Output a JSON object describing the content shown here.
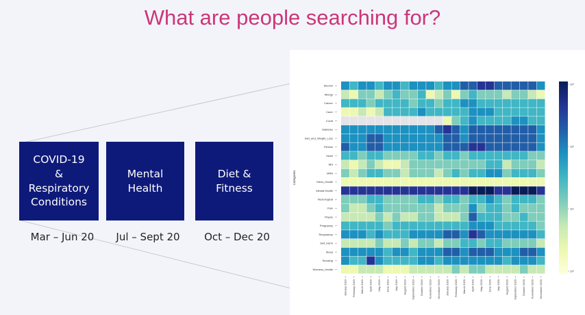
{
  "slide": {
    "title": "What are people searching for?"
  },
  "cards": [
    {
      "label": "COVID-19\n&\nRespiratory\nConditions",
      "period": "Mar – Jun 20"
    },
    {
      "label": "Mental Health",
      "period": "Jul – Sept 20"
    },
    {
      "label": "Diet & Fitness",
      "period": "Oct – Dec 20"
    }
  ],
  "colors": {
    "title": "#cc3579",
    "card_fill": "#0e1a7a",
    "colormap": [
      "#ffffd9",
      "#edf8b1",
      "#c7e9b4",
      "#7fcdbb",
      "#41b6c4",
      "#1d91c0",
      "#225ea8",
      "#253494",
      "#081d58"
    ]
  },
  "chart_data": {
    "type": "heatmap",
    "ylabel": "Categories",
    "rows": [
      "Alcohol",
      "Allergy",
      "Cancer",
      "Carer",
      "Covid",
      "Diabetes",
      "Diet_and_Weight_Loss",
      "Fitness",
      "Heart",
      "IBS",
      "MRA",
      "Mens_Health",
      "Mental Health",
      "Neurological",
      "Pain",
      "Physio",
      "Pregnancy",
      "Respiratory",
      "Self_Harm",
      "Sleep",
      "Smoking",
      "Womens_Health"
    ],
    "columns": [
      "January 2019",
      "February 2019",
      "March 2019",
      "April 2019",
      "May 2019",
      "June 2019",
      "July 2019",
      "August 2019",
      "September 2019",
      "October 2019",
      "November 2019",
      "December 2019",
      "January 2020",
      "February 2020",
      "March 2020",
      "April 2020",
      "May 2020",
      "June 2020",
      "July 2020",
      "August 2020",
      "September 2020",
      "October 2020",
      "November 2020",
      "December 2020"
    ],
    "values": [
      [
        5,
        4,
        5,
        5,
        4,
        5,
        5,
        4,
        5,
        5,
        5,
        4,
        5,
        5,
        6,
        6,
        7,
        7,
        6,
        6,
        6,
        6,
        6,
        5
      ],
      [
        2,
        1,
        3,
        3,
        2,
        3,
        4,
        3,
        3,
        4,
        1,
        2,
        3,
        1,
        3,
        4,
        3,
        3,
        3,
        2,
        3,
        3,
        2,
        1
      ],
      [
        4,
        4,
        4,
        3,
        4,
        4,
        4,
        4,
        3,
        4,
        4,
        3,
        4,
        4,
        5,
        5,
        4,
        4,
        4,
        4,
        4,
        4,
        4,
        4
      ],
      [
        1,
        1,
        2,
        1,
        2,
        4,
        4,
        4,
        4,
        5,
        4,
        4,
        4,
        4,
        4,
        5,
        5,
        5,
        4,
        4,
        4,
        4,
        4,
        4
      ],
      [
        0,
        0,
        0,
        0,
        0,
        0,
        0,
        0,
        0,
        0,
        0,
        0,
        1,
        3,
        4,
        5,
        4,
        4,
        4,
        4,
        5,
        5,
        4,
        4
      ],
      [
        5,
        5,
        5,
        5,
        5,
        5,
        5,
        5,
        5,
        5,
        5,
        6,
        7,
        6,
        5,
        6,
        6,
        6,
        6,
        6,
        6,
        6,
        6,
        5
      ],
      [
        5,
        5,
        5,
        6,
        6,
        5,
        5,
        5,
        5,
        5,
        5,
        5,
        6,
        6,
        5,
        6,
        6,
        6,
        6,
        6,
        6,
        6,
        6,
        5
      ],
      [
        6,
        5,
        5,
        6,
        6,
        5,
        5,
        5,
        5,
        5,
        5,
        5,
        6,
        6,
        6,
        7,
        7,
        6,
        6,
        6,
        6,
        6,
        6,
        5
      ],
      [
        4,
        4,
        3,
        4,
        4,
        3,
        3,
        3,
        3,
        4,
        4,
        3,
        4,
        4,
        3,
        4,
        4,
        4,
        4,
        4,
        4,
        4,
        3,
        3
      ],
      [
        2,
        1,
        2,
        3,
        2,
        1,
        1,
        2,
        3,
        3,
        3,
        3,
        3,
        3,
        3,
        3,
        3,
        4,
        4,
        2,
        3,
        3,
        3,
        2
      ],
      [
        3,
        2,
        3,
        4,
        4,
        3,
        3,
        2,
        3,
        3,
        3,
        2,
        3,
        4,
        3,
        4,
        4,
        5,
        5,
        3,
        4,
        4,
        4,
        3
      ],
      [
        1,
        1,
        1,
        1,
        1,
        1,
        1,
        1,
        1,
        1,
        1,
        1,
        1,
        1,
        1,
        1,
        1,
        1,
        1,
        1,
        1,
        1,
        1,
        1
      ],
      [
        7,
        7,
        7,
        7,
        7,
        7,
        7,
        7,
        7,
        7,
        7,
        7,
        7,
        7,
        7,
        8,
        8,
        8,
        7,
        7,
        8,
        8,
        8,
        7
      ],
      [
        3,
        3,
        3,
        4,
        4,
        3,
        3,
        3,
        3,
        4,
        4,
        3,
        4,
        4,
        3,
        4,
        4,
        5,
        4,
        3,
        4,
        4,
        4,
        3
      ],
      [
        3,
        2,
        2,
        3,
        4,
        3,
        3,
        3,
        3,
        3,
        3,
        2,
        3,
        3,
        3,
        5,
        3,
        4,
        4,
        3,
        4,
        3,
        3,
        3
      ],
      [
        2,
        2,
        2,
        2,
        3,
        2,
        3,
        2,
        2,
        3,
        3,
        2,
        2,
        2,
        3,
        6,
        4,
        4,
        4,
        3,
        3,
        4,
        3,
        3
      ],
      [
        4,
        4,
        4,
        4,
        4,
        3,
        4,
        4,
        4,
        4,
        4,
        4,
        4,
        4,
        4,
        5,
        5,
        5,
        4,
        4,
        4,
        4,
        4,
        3
      ],
      [
        5,
        5,
        5,
        4,
        5,
        4,
        4,
        4,
        5,
        5,
        5,
        5,
        6,
        6,
        5,
        7,
        6,
        5,
        5,
        5,
        5,
        5,
        5,
        4
      ],
      [
        2,
        2,
        2,
        2,
        3,
        2,
        2,
        3,
        2,
        3,
        3,
        2,
        3,
        3,
        4,
        4,
        3,
        4,
        4,
        3,
        3,
        3,
        3,
        2
      ],
      [
        5,
        5,
        5,
        5,
        5,
        4,
        5,
        5,
        4,
        5,
        5,
        5,
        6,
        6,
        5,
        6,
        6,
        6,
        5,
        5,
        5,
        6,
        6,
        5
      ],
      [
        5,
        4,
        4,
        7,
        5,
        4,
        4,
        4,
        4,
        5,
        5,
        4,
        5,
        5,
        5,
        5,
        5,
        5,
        5,
        4,
        5,
        5,
        5,
        4
      ],
      [
        1,
        1,
        2,
        2,
        2,
        1,
        1,
        1,
        2,
        2,
        2,
        2,
        2,
        3,
        2,
        3,
        3,
        2,
        2,
        2,
        2,
        3,
        2,
        2
      ]
    ],
    "colorbar": {
      "tick_labels": [
        "10³",
        "10²",
        "10¹",
        "10⁰"
      ],
      "scale": "log"
    }
  }
}
